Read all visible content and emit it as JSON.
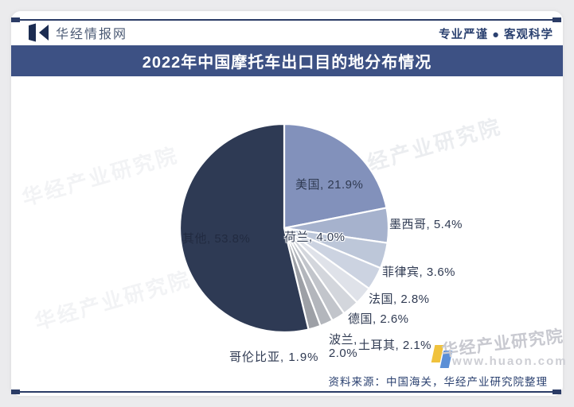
{
  "header": {
    "brand": "华经情报网",
    "slogan": "专业严谨 ● 客观科学"
  },
  "title_bar": {
    "title": "2022年中国摩托车出口目的地分布情况",
    "bg_color": "#3d5184"
  },
  "chart_data": {
    "type": "pie",
    "title": "2022年中国摩托车出口目的地分布情况",
    "unit": "%",
    "start_angle": "12-oclock, clockwise",
    "legend_position": "none (direct labels)",
    "slices": [
      {
        "key": "usa",
        "name": "美国",
        "value": 21.9,
        "label": "美国, 21.9%",
        "color": "#8291bb"
      },
      {
        "key": "mexico",
        "name": "墨西哥",
        "value": 5.4,
        "label": "墨西哥, 5.4%",
        "color": "#a6b2cd"
      },
      {
        "key": "netherlands",
        "name": "荷兰",
        "value": 4.0,
        "label": "荷兰, 4.0%",
        "color": "#bdc7d9"
      },
      {
        "key": "philippines",
        "name": "菲律宾",
        "value": 3.6,
        "label": "菲律宾, 3.6%",
        "color": "#ccd3e1"
      },
      {
        "key": "france",
        "name": "法国",
        "value": 2.8,
        "label": "法国, 2.8%",
        "color": "#dfe2e9"
      },
      {
        "key": "germany",
        "name": "德国",
        "value": 2.6,
        "label": "德国, 2.6%",
        "color": "#d3d6dc"
      },
      {
        "key": "turkey",
        "name": "土耳其",
        "value": 2.1,
        "label": "土耳其, 2.1%",
        "color": "#c2c5cb"
      },
      {
        "key": "poland",
        "name": "波兰",
        "value": 2.0,
        "label": "波兰, 2.0%",
        "color": "#b3b6bc"
      },
      {
        "key": "colombia",
        "name": "哥伦比亚",
        "value": 1.9,
        "label": "哥伦比亚, 1.9%",
        "color": "#9da0a6"
      },
      {
        "key": "others",
        "name": "其他",
        "value": 53.8,
        "label": "其他, 53.8%",
        "color": "#2e3a54"
      }
    ]
  },
  "watermark": {
    "text": "华经产业研究院",
    "site_name": "华经产业研究院",
    "site_url": "www.huaon.com"
  },
  "footer": {
    "source": "资料来源：中国海关，华经产业研究院整理"
  }
}
